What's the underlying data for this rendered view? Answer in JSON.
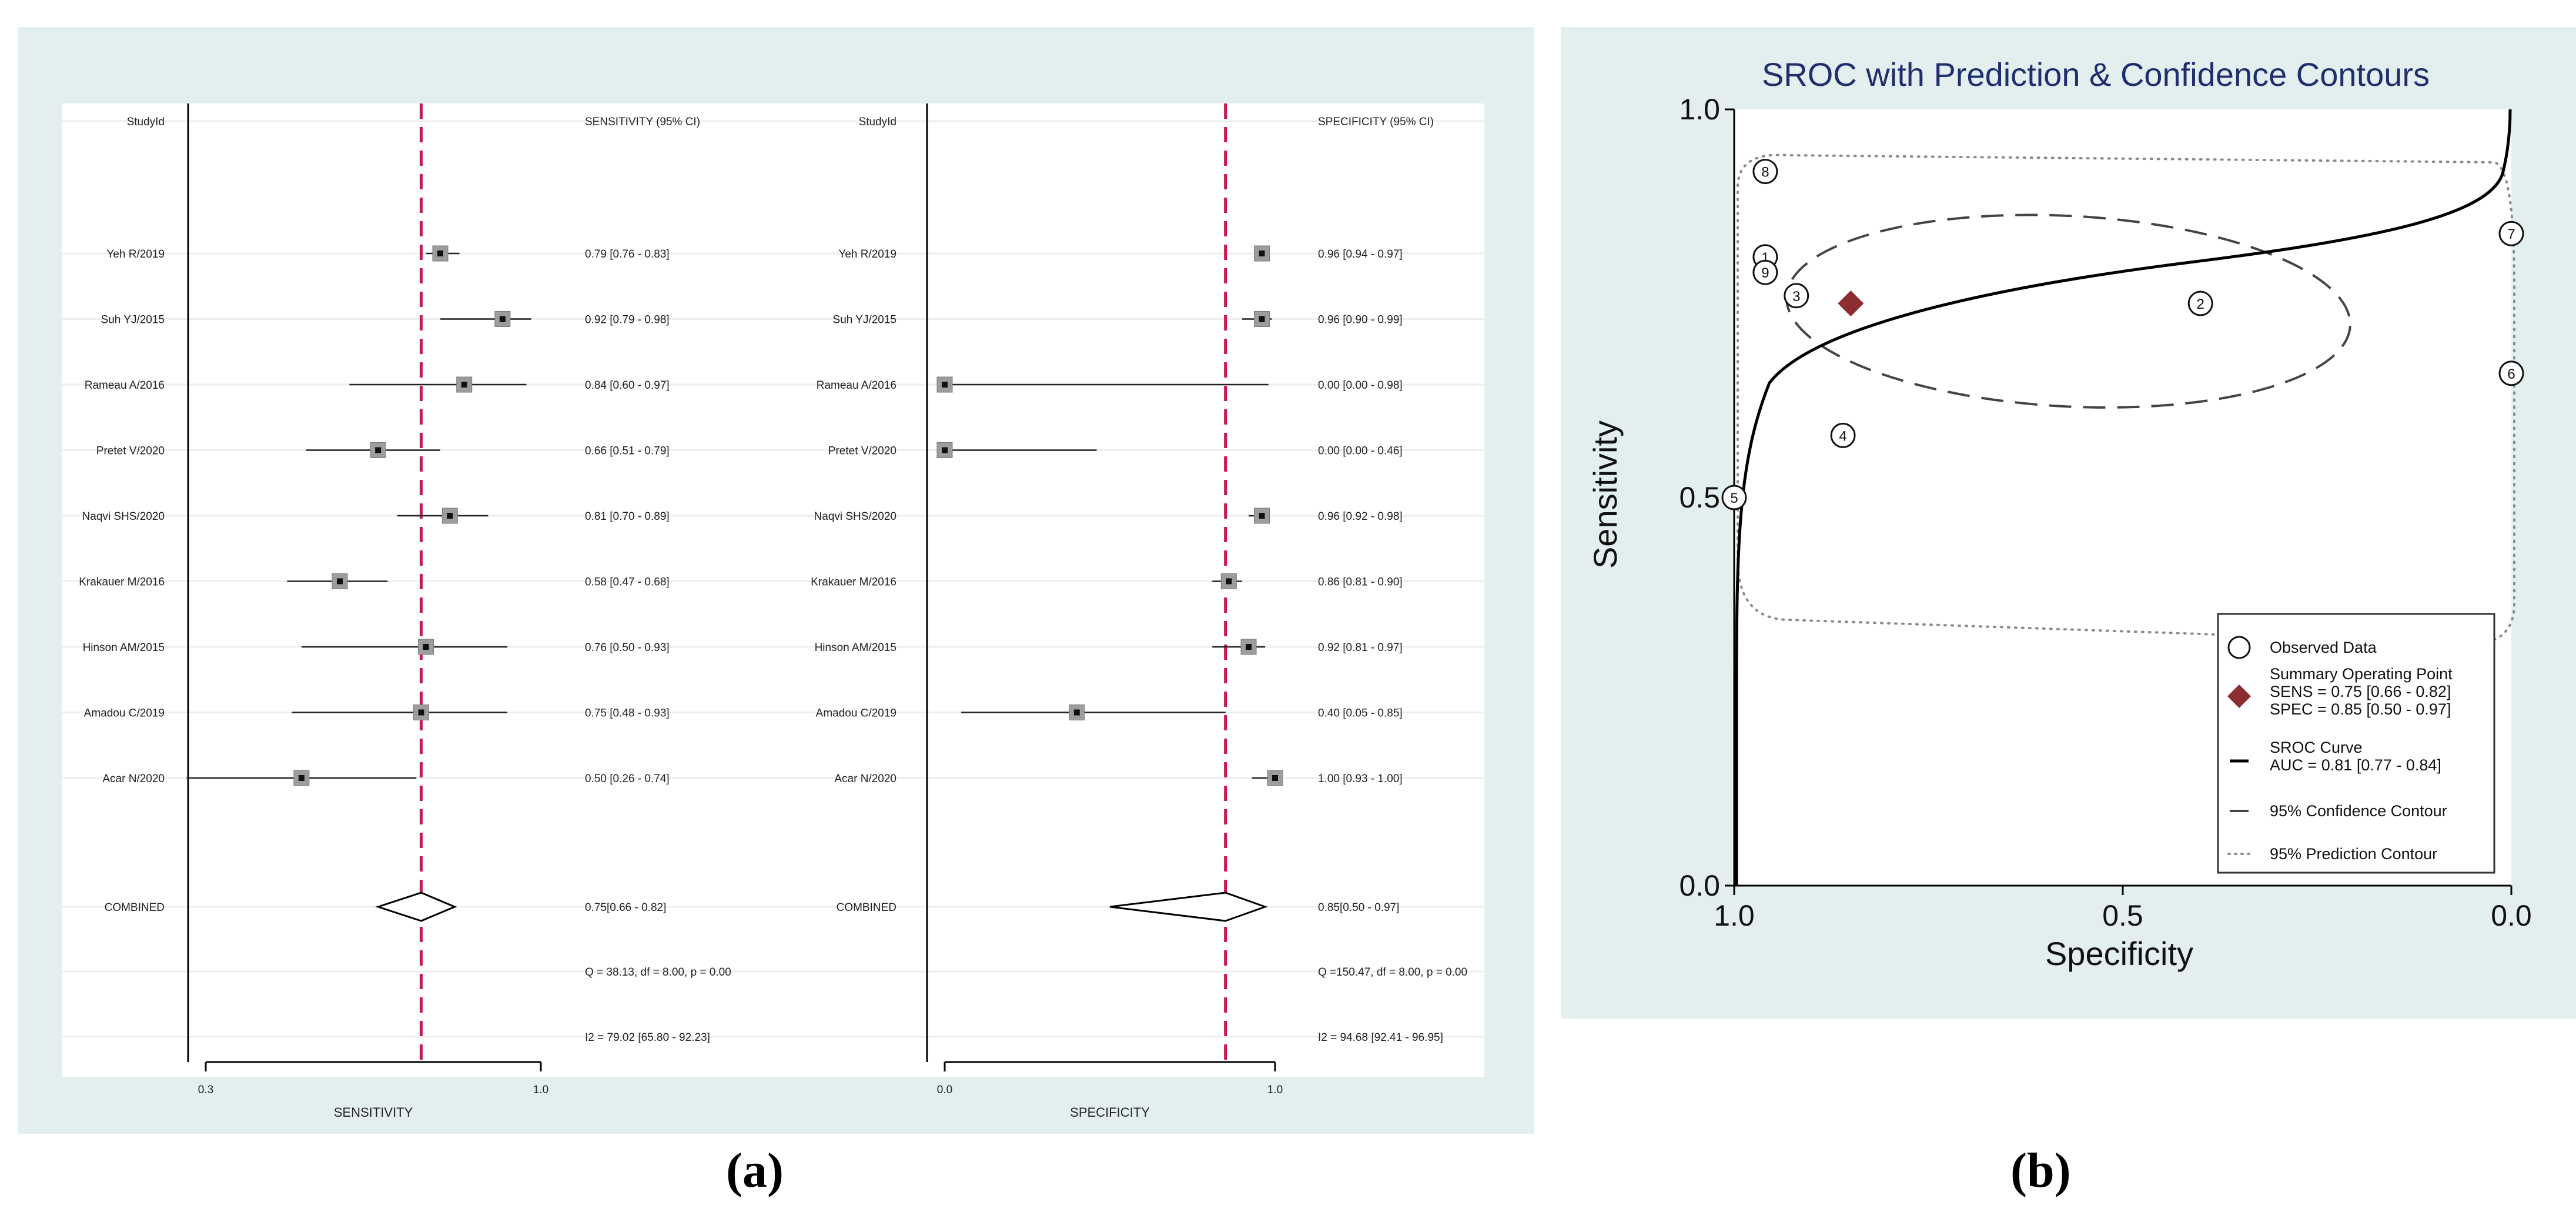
{
  "panels": {
    "a": "(a)",
    "b": "(b)"
  },
  "chart_data": [
    {
      "type": "forest",
      "measure": "sensitivity",
      "header_left": "StudyId",
      "header_right": "SENSITIVITY (95% CI)",
      "xlabel": "SENSITIVITY",
      "xlim": [
        0.3,
        1.0
      ],
      "xticks": [
        "0.3",
        "1.0"
      ],
      "pooled_line": 0.75,
      "studies": [
        {
          "id": "Yeh R/2019",
          "est": 0.79,
          "lo": 0.76,
          "hi": 0.83,
          "label": "0.79 [0.76 - 0.83]"
        },
        {
          "id": "Suh YJ/2015",
          "est": 0.92,
          "lo": 0.79,
          "hi": 0.98,
          "label": "0.92 [0.79 - 0.98]"
        },
        {
          "id": "Rameau A/2016",
          "est": 0.84,
          "lo": 0.6,
          "hi": 0.97,
          "label": "0.84 [0.60 - 0.97]"
        },
        {
          "id": "Pretet V/2020",
          "est": 0.66,
          "lo": 0.51,
          "hi": 0.79,
          "label": "0.66 [0.51 - 0.79]"
        },
        {
          "id": "Naqvi SHS/2020",
          "est": 0.81,
          "lo": 0.7,
          "hi": 0.89,
          "label": "0.81 [0.70 - 0.89]"
        },
        {
          "id": "Krakauer M/2016",
          "est": 0.58,
          "lo": 0.47,
          "hi": 0.68,
          "label": "0.58 [0.47 - 0.68]"
        },
        {
          "id": "Hinson AM/2015",
          "est": 0.76,
          "lo": 0.5,
          "hi": 0.93,
          "label": "0.76 [0.50 - 0.93]"
        },
        {
          "id": "Amadou C/2019",
          "est": 0.75,
          "lo": 0.48,
          "hi": 0.93,
          "label": "0.75 [0.48 - 0.93]"
        },
        {
          "id": "Acar N/2020",
          "est": 0.5,
          "lo": 0.26,
          "hi": 0.74,
          "label": "0.50 [0.26 - 0.74]"
        }
      ],
      "combined": {
        "id": "COMBINED",
        "est": 0.75,
        "lo": 0.66,
        "hi": 0.82,
        "label": "0.75[0.66 - 0.82]"
      },
      "q_stat": "Q = 38.13, df = 8.00, p =  0.00",
      "i2_stat": "I2 = 79.02 [65.80 - 92.23]"
    },
    {
      "type": "forest",
      "measure": "specificity",
      "header_left": "StudyId",
      "header_right": "SPECIFICITY (95% CI)",
      "xlabel": "SPECIFICITY",
      "xlim": [
        0.0,
        1.0
      ],
      "xticks": [
        "0.0",
        "1.0"
      ],
      "pooled_line": 0.85,
      "studies": [
        {
          "id": "Yeh R/2019",
          "est": 0.96,
          "lo": 0.94,
          "hi": 0.97,
          "label": "0.96 [0.94 - 0.97]"
        },
        {
          "id": "Suh YJ/2015",
          "est": 0.96,
          "lo": 0.9,
          "hi": 0.99,
          "label": "0.96 [0.90 - 0.99]"
        },
        {
          "id": "Rameau A/2016",
          "est": 0.0,
          "lo": 0.0,
          "hi": 0.98,
          "label": "0.00 [0.00 - 0.98]"
        },
        {
          "id": "Pretet V/2020",
          "est": 0.0,
          "lo": 0.0,
          "hi": 0.46,
          "label": "0.00 [0.00 - 0.46]"
        },
        {
          "id": "Naqvi SHS/2020",
          "est": 0.96,
          "lo": 0.92,
          "hi": 0.98,
          "label": "0.96 [0.92 - 0.98]"
        },
        {
          "id": "Krakauer M/2016",
          "est": 0.86,
          "lo": 0.81,
          "hi": 0.9,
          "label": "0.86 [0.81 - 0.90]"
        },
        {
          "id": "Hinson AM/2015",
          "est": 0.92,
          "lo": 0.81,
          "hi": 0.97,
          "label": "0.92 [0.81 - 0.97]"
        },
        {
          "id": "Amadou C/2019",
          "est": 0.4,
          "lo": 0.05,
          "hi": 0.85,
          "label": "0.40 [0.05 - 0.85]"
        },
        {
          "id": "Acar N/2020",
          "est": 1.0,
          "lo": 0.93,
          "hi": 1.0,
          "label": "1.00 [0.93 - 1.00]"
        }
      ],
      "combined": {
        "id": "COMBINED",
        "est": 0.85,
        "lo": 0.5,
        "hi": 0.97,
        "label": "0.85[0.50 - 0.97]"
      },
      "q_stat": "Q =150.47, df = 8.00, p =  0.00",
      "i2_stat": "I2 = 94.68 [92.41 - 96.95]"
    },
    {
      "type": "sroc",
      "title": "SROC with Prediction & Confidence Contours",
      "xlabel": "Specificity",
      "ylabel": "Sensitivity",
      "xlim": [
        1.0,
        0.0
      ],
      "ylim": [
        0.0,
        1.0
      ],
      "xticks": [
        "1.0",
        "0.5",
        "0.0"
      ],
      "yticks": [
        "0.0",
        "0.5",
        "1.0"
      ],
      "observed": [
        {
          "n": "1",
          "spec": 0.96,
          "sens": 0.81
        },
        {
          "n": "2",
          "spec": 0.4,
          "sens": 0.75
        },
        {
          "n": "3",
          "spec": 0.92,
          "sens": 0.76
        },
        {
          "n": "4",
          "spec": 0.86,
          "sens": 0.58
        },
        {
          "n": "5",
          "spec": 1.0,
          "sens": 0.5
        },
        {
          "n": "6",
          "spec": 0.0,
          "sens": 0.66
        },
        {
          "n": "7",
          "spec": 0.0,
          "sens": 0.84
        },
        {
          "n": "8",
          "spec": 0.96,
          "sens": 0.92
        },
        {
          "n": "9",
          "spec": 0.96,
          "sens": 0.79
        }
      ],
      "summary_point": {
        "spec": 0.85,
        "sens": 0.75
      },
      "summary_color": "#8c2d32",
      "auc": 0.81,
      "legend": [
        {
          "key": "observed",
          "lines": [
            "Observed Data"
          ]
        },
        {
          "key": "summary",
          "lines": [
            "Summary Operating Point",
            "SENS = 0.75 [0.66 - 0.82]",
            "SPEC = 0.85 [0.50 - 0.97]"
          ]
        },
        {
          "key": "sroc",
          "lines": [
            "SROC Curve",
            "AUC = 0.81 [0.77 - 0.84]"
          ]
        },
        {
          "key": "confidence",
          "lines": [
            "95% Confidence Contour"
          ]
        },
        {
          "key": "prediction",
          "lines": [
            "95% Prediction Contour"
          ]
        }
      ]
    }
  ],
  "colors": {
    "panel_bg": "#e3eeee",
    "pooled_line": "#c8194b",
    "summary": "#8c2d32",
    "title": "#1f2f6e"
  }
}
